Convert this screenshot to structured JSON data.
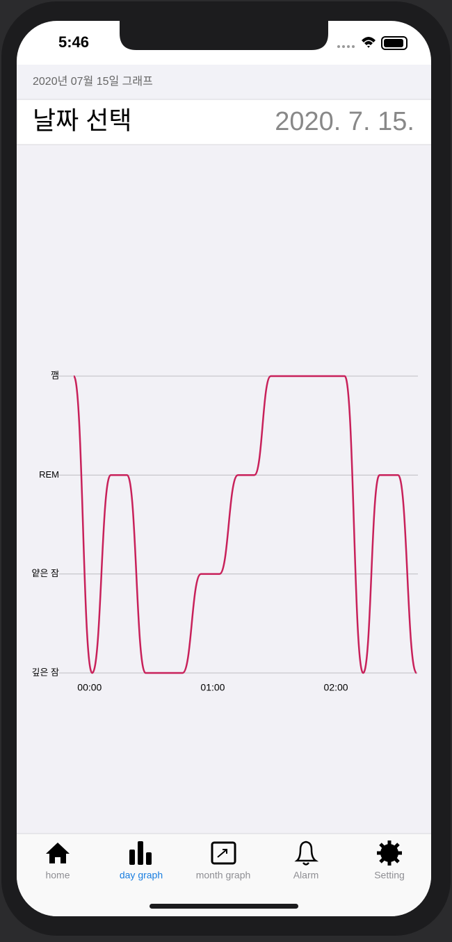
{
  "status_bar": {
    "time": "5:46"
  },
  "header": {
    "title": "2020년 07월 15일 그래프"
  },
  "date_picker": {
    "label": "날짜 선택",
    "value": "2020. 7. 15."
  },
  "chart_data": {
    "type": "line",
    "color": "#c8215a",
    "x": [
      -4,
      5,
      14,
      22,
      31,
      49,
      58,
      67,
      76,
      84,
      92,
      128,
      137,
      145,
      154,
      163
    ],
    "values": [
      3,
      0,
      2,
      2,
      0,
      0,
      1,
      1,
      2,
      2,
      3,
      3,
      0,
      2,
      2,
      0
    ],
    "xlim": [
      -4,
      163
    ],
    "ylim": [
      0,
      3
    ],
    "xticks": [
      {
        "value": 0,
        "label": "00:00"
      },
      {
        "value": 60,
        "label": "01:00"
      },
      {
        "value": 120,
        "label": "02:00"
      }
    ],
    "yticks": [
      {
        "value": 0,
        "label": "깊은 잠"
      },
      {
        "value": 1,
        "label": "얕은 잠"
      },
      {
        "value": 2,
        "label": "REM"
      },
      {
        "value": 3,
        "label": "깸"
      }
    ],
    "grid": true
  },
  "tab_bar": {
    "items": [
      {
        "label": "home"
      },
      {
        "label": "day graph"
      },
      {
        "label": "month graph"
      },
      {
        "label": "Alarm"
      },
      {
        "label": "Setting"
      }
    ],
    "selected": 1
  }
}
